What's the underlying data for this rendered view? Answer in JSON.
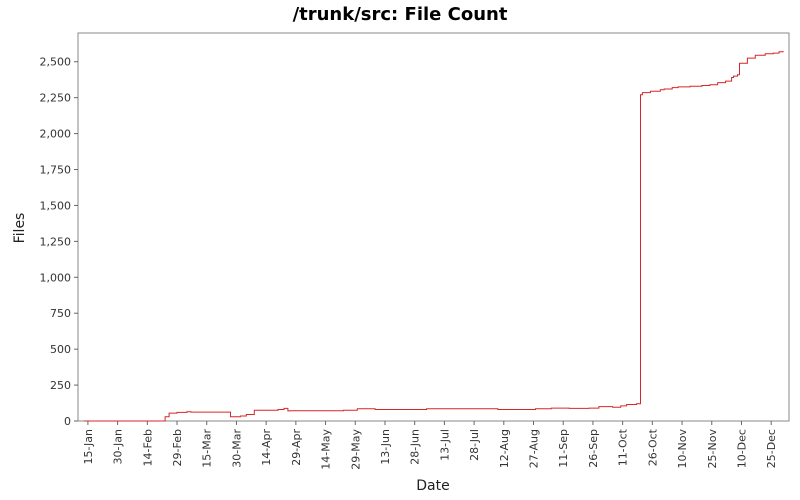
{
  "chart_data": {
    "type": "line",
    "title": "/trunk/src: File Count",
    "xlabel": "Date",
    "ylabel": "Files",
    "grid": false,
    "ylim": [
      0,
      2700
    ],
    "y_ticks": [
      0,
      250,
      500,
      750,
      1000,
      1250,
      1500,
      1750,
      2000,
      2250,
      2500
    ],
    "y_tick_labels": [
      "0",
      "250",
      "500",
      "750",
      "1,000",
      "1,250",
      "1,500",
      "1,750",
      "2,000",
      "2,250",
      "2,500"
    ],
    "x_tick_labels": [
      "15-Jan",
      "30-Jan",
      "14-Feb",
      "29-Feb",
      "15-Mar",
      "30-Mar",
      "14-Apr",
      "29-Apr",
      "14-May",
      "29-May",
      "13-Jun",
      "28-Jun",
      "13-Jul",
      "28-Jul",
      "12-Aug",
      "27-Aug",
      "11-Sep",
      "26-Sep",
      "11-Oct",
      "26-Oct",
      "10-Nov",
      "25-Nov",
      "10-Dec",
      "25-Dec"
    ],
    "series": [
      {
        "color": "#d62728",
        "x": [
          "13-Jan",
          "22-Feb",
          "23-Feb",
          "25-Feb",
          "29-Feb",
          "5-Mar",
          "7-Mar",
          "27-Mar",
          "1-Apr",
          "4-Apr",
          "8-Apr",
          "20-Apr",
          "23-Apr",
          "25-Apr",
          "26-Apr",
          "13-May",
          "23-May",
          "30-May",
          "8-Jun",
          "1-Jul",
          "4-Jul",
          "26-Jul",
          "9-Aug",
          "14-Aug",
          "28-Aug",
          "5-Sep",
          "14-Sep",
          "24-Sep",
          "29-Sep",
          "6-Oct",
          "10-Oct",
          "13-Oct",
          "18-Oct",
          "20-Oct",
          "20-Oct",
          "21-Oct",
          "25-Oct",
          "30-Oct",
          "1-Nov",
          "5-Nov",
          "8-Nov",
          "14-Nov",
          "20-Nov",
          "24-Nov",
          "28-Nov",
          "2-Dec",
          "5-Dec",
          "6-Dec",
          "8-Dec",
          "9-Dec",
          "13-Dec",
          "17-Dec",
          "22-Dec",
          "26-Dec",
          "29-Dec",
          "31-Dec"
        ],
        "y": [
          0,
          0,
          30,
          55,
          60,
          65,
          62,
          30,
          35,
          45,
          75,
          80,
          88,
          70,
          72,
          72,
          75,
          85,
          80,
          80,
          85,
          85,
          80,
          80,
          85,
          90,
          88,
          90,
          100,
          95,
          105,
          115,
          120,
          125,
          2270,
          2285,
          2295,
          2305,
          2310,
          2320,
          2325,
          2330,
          2335,
          2340,
          2355,
          2365,
          2390,
          2400,
          2410,
          2490,
          2525,
          2545,
          2555,
          2560,
          2570,
          2575
        ]
      }
    ]
  }
}
